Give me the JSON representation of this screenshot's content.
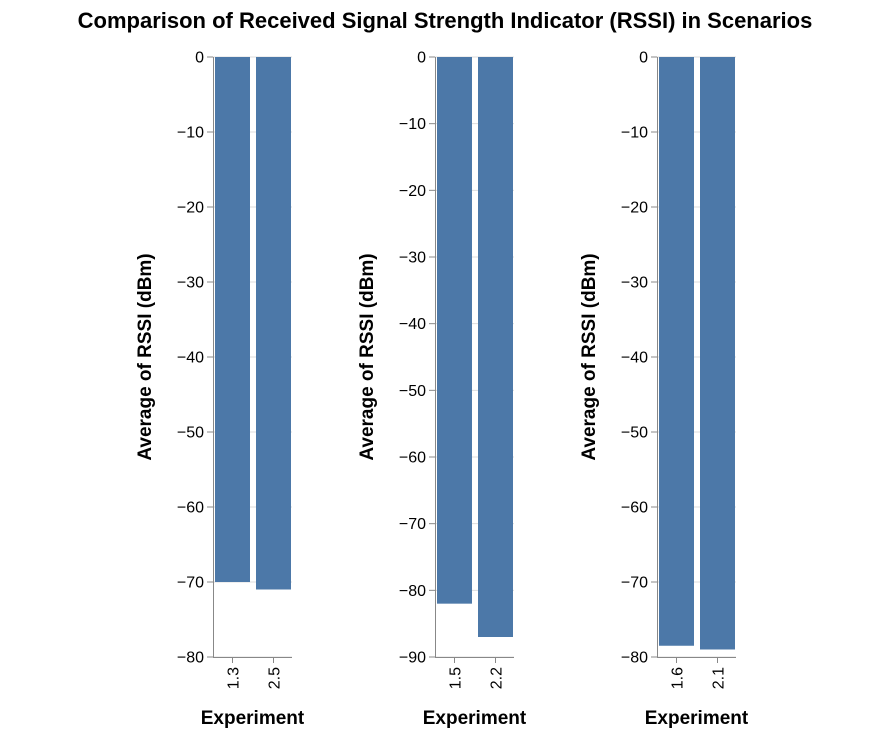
{
  "title": "Comparison of Received Signal Strength Indicator (RSSI) in Scenarios",
  "colors": {
    "bar": "#4c78a8",
    "axis": "#888888",
    "grid": "#dddddd",
    "text": "#000000"
  },
  "chart_data": [
    {
      "type": "bar",
      "categories": [
        "1.3",
        "2.5"
      ],
      "values": [
        -70,
        -71
      ],
      "xlabel": "Experiment",
      "ylabel": "Average of RSSI (dBm)",
      "ylim": [
        -80,
        0
      ],
      "yticks": [
        0,
        -10,
        -20,
        -30,
        -40,
        -50,
        -60,
        -70,
        -80
      ],
      "grid": true
    },
    {
      "type": "bar",
      "categories": [
        "1.5",
        "2.2"
      ],
      "values": [
        -82,
        -87
      ],
      "xlabel": "Experiment",
      "ylabel": "Average of RSSI (dBm)",
      "ylim": [
        -90,
        0
      ],
      "yticks": [
        0,
        -10,
        -20,
        -30,
        -40,
        -50,
        -60,
        -70,
        -80,
        -90
      ],
      "grid": true
    },
    {
      "type": "bar",
      "categories": [
        "1.6",
        "2.1"
      ],
      "values": [
        -78.5,
        -79
      ],
      "xlabel": "Experiment",
      "ylabel": "Average of RSSI (dBm)",
      "ylim": [
        -80,
        0
      ],
      "yticks": [
        0,
        -10,
        -20,
        -30,
        -40,
        -50,
        -60,
        -70,
        -80
      ],
      "grid": true
    }
  ]
}
